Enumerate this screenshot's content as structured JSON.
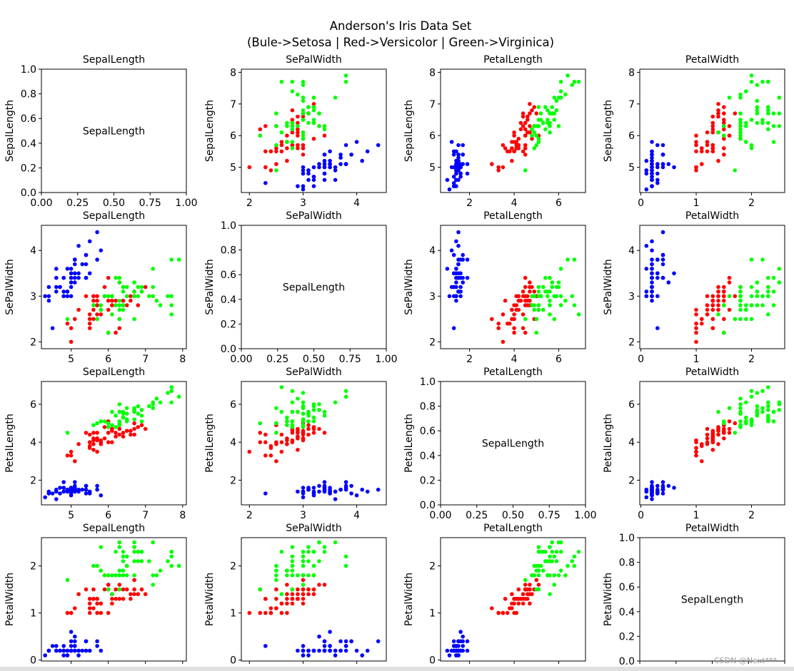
{
  "figure": {
    "title_line1": "Anderson's Iris Data Set",
    "title_line2": "(Bule->Setosa | Red->Versicolor | Green->Virginica)"
  },
  "watermark": "CSDN @Next***",
  "colors": {
    "setosa": "#0000ff",
    "versicolor": "#ff0000",
    "virginica": "#00ff00"
  },
  "features": [
    "SepalLength",
    "SePalWidth",
    "PetalLength",
    "PetalWidth"
  ],
  "chart_data": {
    "type": "scatter",
    "layout": "4x4 scatter matrix",
    "column_titles": [
      "SepalLength",
      "SePalWidth",
      "PetalLength",
      "PetalWidth"
    ],
    "row_ylabels": [
      "SepalLength",
      "SePalWidth",
      "PetalLength",
      "PetalWidth"
    ],
    "diagonal_text": "SepalLength",
    "diagonal_ticks": [
      "0.0",
      "0.2",
      "0.4",
      "0.6",
      "0.8",
      "1.0"
    ],
    "diagonal_xticks": [
      "0.00",
      "0.25",
      "0.50",
      "0.75",
      "1.00"
    ],
    "axis_ranges": [
      [
        4.2,
        8.1
      ],
      [
        1.85,
        4.55
      ],
      [
        0.7,
        7.2
      ],
      [
        -0.02,
        2.6
      ]
    ],
    "axis_ticks": [
      [
        5,
        6,
        7,
        8
      ],
      [
        2,
        3,
        4
      ],
      [
        2,
        4,
        6
      ],
      [
        0,
        1,
        2
      ]
    ],
    "series": [
      {
        "name": "Setosa",
        "color": "#0000ff",
        "sl": [
          5.1,
          4.9,
          4.7,
          4.6,
          5.0,
          5.4,
          4.6,
          5.0,
          4.4,
          4.9,
          5.4,
          4.8,
          4.8,
          4.3,
          5.8,
          5.7,
          5.4,
          5.1,
          5.7,
          5.1,
          5.4,
          5.1,
          4.6,
          5.1,
          4.8,
          5.0,
          5.0,
          5.2,
          5.2,
          4.7,
          4.8,
          5.4,
          5.2,
          5.5,
          4.9,
          5.0,
          5.5,
          4.9,
          4.4,
          5.1,
          5.0,
          4.5,
          4.4,
          5.0,
          5.1,
          4.8,
          5.1,
          4.6,
          5.3,
          5.0
        ],
        "sw": [
          3.5,
          3.0,
          3.2,
          3.1,
          3.6,
          3.9,
          3.4,
          3.4,
          2.9,
          3.1,
          3.7,
          3.4,
          3.0,
          3.0,
          4.0,
          4.4,
          3.9,
          3.5,
          3.8,
          3.8,
          3.4,
          3.7,
          3.6,
          3.3,
          3.4,
          3.0,
          3.4,
          3.5,
          3.4,
          3.2,
          3.1,
          3.4,
          4.1,
          4.2,
          3.1,
          3.2,
          3.5,
          3.6,
          3.0,
          3.4,
          3.5,
          2.3,
          3.2,
          3.5,
          3.8,
          3.0,
          3.8,
          3.2,
          3.7,
          3.3
        ],
        "pl": [
          1.4,
          1.4,
          1.3,
          1.5,
          1.4,
          1.7,
          1.4,
          1.5,
          1.4,
          1.5,
          1.5,
          1.6,
          1.4,
          1.1,
          1.2,
          1.5,
          1.3,
          1.4,
          1.7,
          1.5,
          1.7,
          1.5,
          1.0,
          1.7,
          1.9,
          1.6,
          1.6,
          1.5,
          1.4,
          1.6,
          1.6,
          1.5,
          1.5,
          1.4,
          1.5,
          1.2,
          1.3,
          1.4,
          1.3,
          1.5,
          1.3,
          1.3,
          1.3,
          1.6,
          1.9,
          1.4,
          1.6,
          1.4,
          1.5,
          1.4
        ],
        "pw": [
          0.2,
          0.2,
          0.2,
          0.2,
          0.2,
          0.4,
          0.3,
          0.2,
          0.2,
          0.1,
          0.2,
          0.2,
          0.1,
          0.1,
          0.2,
          0.4,
          0.4,
          0.3,
          0.3,
          0.3,
          0.2,
          0.4,
          0.2,
          0.5,
          0.2,
          0.2,
          0.4,
          0.2,
          0.2,
          0.2,
          0.2,
          0.4,
          0.1,
          0.2,
          0.2,
          0.2,
          0.2,
          0.1,
          0.2,
          0.2,
          0.3,
          0.3,
          0.2,
          0.6,
          0.4,
          0.3,
          0.2,
          0.2,
          0.2,
          0.2
        ]
      },
      {
        "name": "Versicolor",
        "color": "#ff0000",
        "sl": [
          7.0,
          6.4,
          6.9,
          5.5,
          6.5,
          5.7,
          6.3,
          4.9,
          6.6,
          5.2,
          5.0,
          5.9,
          6.0,
          6.1,
          5.6,
          6.7,
          5.6,
          5.8,
          6.2,
          5.6,
          5.9,
          6.1,
          6.3,
          6.1,
          6.4,
          6.6,
          6.8,
          6.7,
          6.0,
          5.7,
          5.5,
          5.5,
          5.8,
          6.0,
          5.4,
          6.0,
          6.7,
          6.3,
          5.6,
          5.5,
          5.5,
          6.1,
          5.8,
          5.0,
          5.6,
          5.7,
          5.7,
          6.2,
          5.1,
          5.7
        ],
        "sw": [
          3.2,
          3.2,
          3.1,
          2.3,
          2.8,
          2.8,
          3.3,
          2.4,
          2.9,
          2.7,
          2.0,
          3.0,
          2.2,
          2.9,
          2.9,
          3.1,
          3.0,
          2.7,
          2.2,
          2.5,
          3.2,
          2.8,
          2.5,
          2.8,
          2.9,
          3.0,
          2.8,
          3.0,
          2.9,
          2.6,
          2.4,
          2.4,
          2.7,
          2.7,
          3.0,
          3.4,
          3.1,
          2.3,
          3.0,
          2.5,
          2.6,
          3.0,
          2.6,
          2.3,
          2.7,
          3.0,
          2.9,
          2.9,
          2.5,
          2.8
        ],
        "pl": [
          4.7,
          4.5,
          4.9,
          4.0,
          4.6,
          4.5,
          4.7,
          3.3,
          4.6,
          3.9,
          3.5,
          4.2,
          4.0,
          4.7,
          3.6,
          4.4,
          4.5,
          4.1,
          4.5,
          3.9,
          4.8,
          4.0,
          4.9,
          4.7,
          4.3,
          4.4,
          4.8,
          5.0,
          4.5,
          3.5,
          3.8,
          3.7,
          3.9,
          5.1,
          4.5,
          4.5,
          4.7,
          4.4,
          4.1,
          4.0,
          4.4,
          4.6,
          4.0,
          3.3,
          4.2,
          4.2,
          4.2,
          4.3,
          3.0,
          4.1
        ],
        "pw": [
          1.4,
          1.5,
          1.5,
          1.3,
          1.5,
          1.3,
          1.6,
          1.0,
          1.3,
          1.4,
          1.0,
          1.5,
          1.0,
          1.4,
          1.3,
          1.4,
          1.5,
          1.0,
          1.5,
          1.1,
          1.8,
          1.3,
          1.5,
          1.2,
          1.3,
          1.4,
          1.4,
          1.7,
          1.5,
          1.0,
          1.1,
          1.0,
          1.2,
          1.6,
          1.5,
          1.6,
          1.5,
          1.3,
          1.3,
          1.3,
          1.2,
          1.4,
          1.2,
          1.0,
          1.3,
          1.2,
          1.3,
          1.3,
          1.1,
          1.3
        ]
      },
      {
        "name": "Virginica",
        "color": "#00ff00",
        "sl": [
          6.3,
          5.8,
          7.1,
          6.3,
          6.5,
          7.6,
          4.9,
          7.3,
          6.7,
          7.2,
          6.5,
          6.4,
          6.8,
          5.7,
          5.8,
          6.4,
          6.5,
          7.7,
          7.7,
          6.0,
          6.9,
          5.6,
          7.7,
          6.3,
          6.7,
          7.2,
          6.2,
          6.1,
          6.4,
          7.2,
          7.4,
          7.9,
          6.4,
          6.3,
          6.1,
          7.7,
          6.3,
          6.4,
          6.0,
          6.9,
          6.7,
          6.9,
          5.8,
          6.8,
          6.7,
          6.7,
          6.3,
          6.5,
          6.2,
          5.9
        ],
        "sw": [
          3.3,
          2.7,
          3.0,
          2.9,
          3.0,
          3.0,
          2.5,
          2.9,
          2.5,
          3.6,
          3.2,
          2.7,
          3.0,
          2.5,
          2.8,
          3.2,
          3.0,
          3.8,
          2.6,
          2.2,
          3.2,
          2.8,
          2.8,
          2.7,
          3.3,
          3.2,
          2.8,
          3.0,
          2.8,
          3.0,
          2.8,
          3.8,
          2.8,
          2.8,
          2.6,
          3.0,
          3.4,
          3.1,
          3.0,
          3.1,
          3.1,
          3.1,
          2.7,
          3.2,
          3.3,
          3.0,
          2.5,
          3.0,
          3.4,
          3.0
        ],
        "pl": [
          6.0,
          5.1,
          5.9,
          5.6,
          5.8,
          6.6,
          4.5,
          6.3,
          5.8,
          6.1,
          5.1,
          5.3,
          5.5,
          5.0,
          5.1,
          5.3,
          5.5,
          6.7,
          6.9,
          5.0,
          5.7,
          4.9,
          6.7,
          4.9,
          5.7,
          6.0,
          4.8,
          4.9,
          5.6,
          5.8,
          6.1,
          6.4,
          5.6,
          5.1,
          5.6,
          6.1,
          5.6,
          5.5,
          4.8,
          5.4,
          5.6,
          5.1,
          5.1,
          5.9,
          5.7,
          5.2,
          5.0,
          5.2,
          5.4,
          5.1
        ],
        "pw": [
          2.5,
          1.9,
          2.1,
          1.8,
          2.2,
          2.1,
          1.7,
          1.8,
          1.8,
          2.5,
          2.0,
          1.9,
          2.1,
          2.0,
          2.4,
          2.3,
          1.8,
          2.2,
          2.3,
          1.5,
          2.3,
          2.0,
          2.0,
          1.8,
          2.1,
          1.8,
          1.8,
          1.8,
          2.1,
          1.6,
          1.9,
          2.0,
          2.2,
          1.5,
          1.4,
          2.3,
          2.4,
          1.8,
          1.8,
          2.1,
          2.4,
          2.3,
          1.9,
          2.3,
          2.5,
          2.3,
          1.9,
          2.0,
          2.3,
          1.8
        ]
      }
    ]
  }
}
